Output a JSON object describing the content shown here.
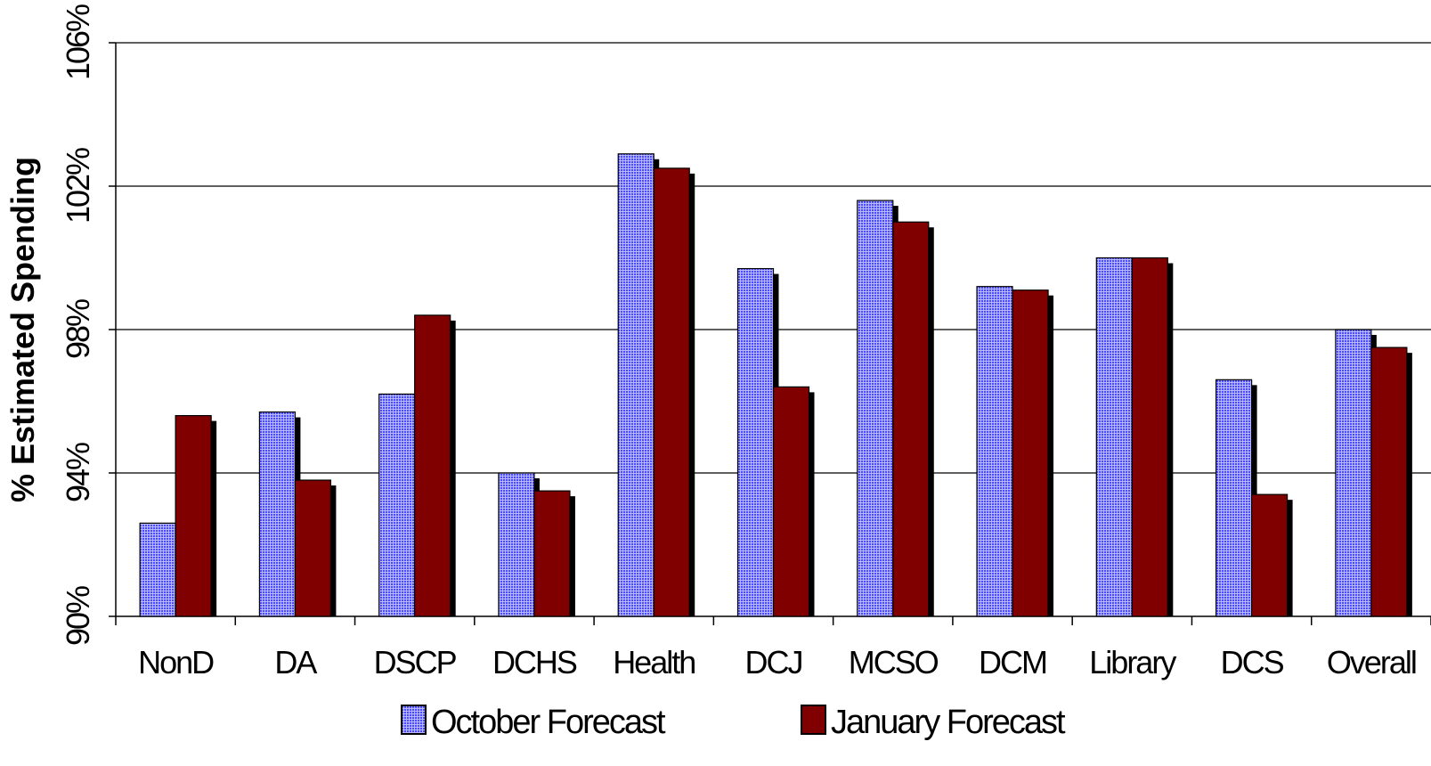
{
  "chart_data": {
    "type": "bar",
    "categories": [
      "NonD",
      "DA",
      "DSCP",
      "DCHS",
      "Health",
      "DCJ",
      "MCSO",
      "DCM",
      "Library",
      "DCS",
      "Overall"
    ],
    "series": [
      {
        "name": "October Forecast",
        "values": [
          92.6,
          95.7,
          96.2,
          94.0,
          102.9,
          99.7,
          101.6,
          99.2,
          100.0,
          96.6,
          98.0
        ],
        "color": "#3f3fff",
        "pattern": "grid"
      },
      {
        "name": "January Forecast",
        "values": [
          95.6,
          93.8,
          98.4,
          93.5,
          102.5,
          96.4,
          101.0,
          99.1,
          100.0,
          93.4,
          97.5
        ],
        "color": "#800000",
        "pattern": "solid"
      }
    ],
    "title": "",
    "xlabel": "",
    "ylabel": "% Estimated Spending",
    "ylim": [
      90,
      106
    ],
    "yticks": [
      "90%",
      "94%",
      "98%",
      "102%",
      "106%"
    ],
    "grid": "horizontal",
    "legend": "bottom"
  }
}
